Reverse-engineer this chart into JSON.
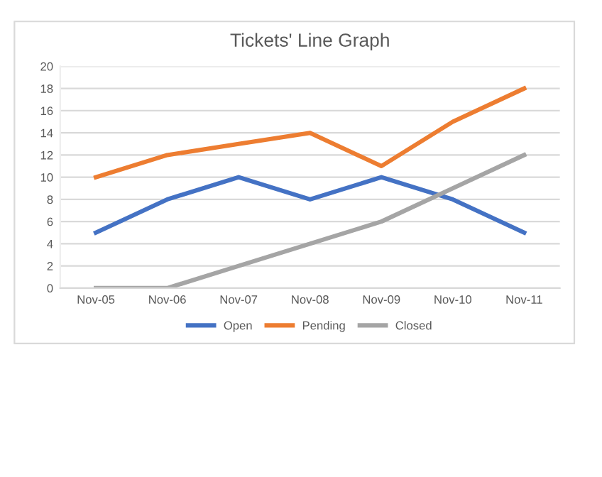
{
  "chart_data": {
    "type": "line",
    "title": "Tickets' Line Graph",
    "categories": [
      "Nov-05",
      "Nov-06",
      "Nov-07",
      "Nov-08",
      "Nov-09",
      "Nov-10",
      "Nov-11"
    ],
    "series": [
      {
        "name": "Open",
        "color": "#4472c4",
        "values": [
          5,
          8,
          10,
          8,
          10,
          8,
          5
        ]
      },
      {
        "name": "Pending",
        "color": "#ed7d31",
        "values": [
          10,
          12,
          13,
          14,
          11,
          15,
          18
        ]
      },
      {
        "name": "Closed",
        "color": "#a5a5a5",
        "values": [
          0,
          0,
          2,
          4,
          6,
          9,
          12
        ]
      }
    ],
    "ylim": [
      0,
      20
    ],
    "yticks": [
      0,
      2,
      4,
      6,
      8,
      10,
      12,
      14,
      16,
      18,
      20
    ],
    "grid": "y",
    "legend": "bottom",
    "marker": "none",
    "line_style": "solid"
  }
}
